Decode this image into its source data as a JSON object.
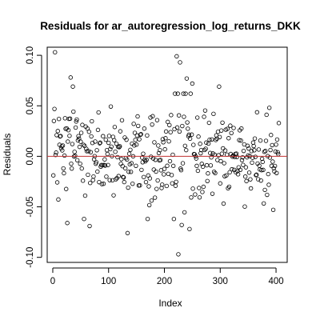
{
  "chart_data": {
    "type": "scatter",
    "title": "Residuals for ar_autoregression_log_returns_DKK",
    "xlabel": "Index",
    "ylabel": "Residuals",
    "xlim": [
      -10,
      420
    ],
    "ylim": [
      -0.105,
      0.108
    ],
    "x_ticks": [
      0,
      100,
      200,
      300,
      400
    ],
    "x_tick_labels": [
      "0",
      "100",
      "200",
      "300",
      "400"
    ],
    "y_ticks": [
      -0.1,
      -0.05,
      0.0,
      0.05,
      0.1
    ],
    "y_tick_labels": [
      "-0.10",
      "-0.05",
      "0.00",
      "0.05",
      "0.10"
    ],
    "reference_line": {
      "y": 0,
      "color": "#c03030"
    },
    "grid": false,
    "point_style": "open-circle",
    "n_points": 405,
    "highlighted_points": [
      {
        "x": 4,
        "y": 0.103
      },
      {
        "x": 26,
        "y": -0.066
      },
      {
        "x": 32,
        "y": 0.078
      },
      {
        "x": 36,
        "y": 0.069
      },
      {
        "x": 66,
        "y": -0.069
      },
      {
        "x": 134,
        "y": -0.076
      },
      {
        "x": 222,
        "y": 0.099
      },
      {
        "x": 225,
        "y": -0.097
      },
      {
        "x": 228,
        "y": 0.093
      },
      {
        "x": 231,
        "y": -0.068
      },
      {
        "x": 240,
        "y": 0.077
      },
      {
        "x": 245,
        "y": -0.072
      },
      {
        "x": 250,
        "y": 0.072
      },
      {
        "x": 298,
        "y": 0.069
      },
      {
        "x": 388,
        "y": 0.048
      },
      {
        "x": 395,
        "y": -0.053
      }
    ]
  }
}
